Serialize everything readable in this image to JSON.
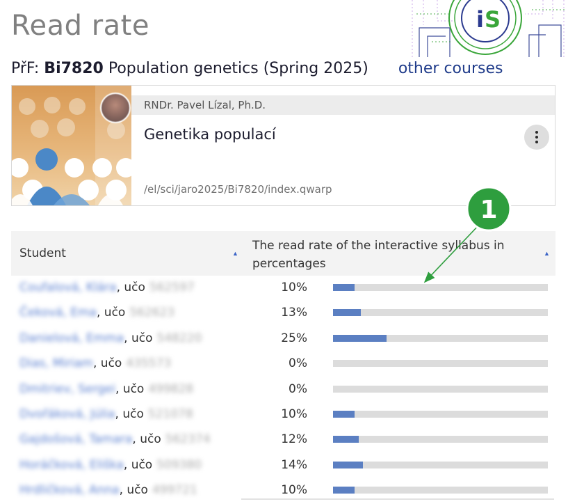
{
  "page": {
    "title": "Read rate"
  },
  "logo": {
    "text": "iS",
    "accent": "#3aa63a",
    "brand": "#2b3a8f"
  },
  "course": {
    "faculty": "PřF:",
    "code": "Bi7820",
    "name": "Population genetics (Spring 2025)",
    "other_courses": "other courses"
  },
  "card": {
    "author": "RNDr. Pavel Lízal, Ph.D.",
    "title": "Genetika populací",
    "path": "/el/sci/jaro2025/Bi7820/index.qwarp",
    "menu_icon": "kebab-icon"
  },
  "table": {
    "col_student": "Student",
    "col_rate": "The read rate of the interactive syllabus in percentages",
    "bar_color": "#5b7fc2",
    "rows": [
      {
        "name": "Coufalová, Klára",
        "uco_label": "učo",
        "uco": "562597",
        "pct_text": "10%",
        "value": 10
      },
      {
        "name": "Čeková, Ema",
        "uco_label": "učo",
        "uco": "562623",
        "pct_text": "13%",
        "value": 13
      },
      {
        "name": "Danielová, Emma",
        "uco_label": "učo",
        "uco": "548220",
        "pct_text": "25%",
        "value": 25
      },
      {
        "name": "Dias, Miriam",
        "uco_label": "učo",
        "uco": "435573",
        "pct_text": "0%",
        "value": 0
      },
      {
        "name": "Dmitriev, Sergei",
        "uco_label": "učo",
        "uco": "499828",
        "pct_text": "0%",
        "value": 0
      },
      {
        "name": "Dvořáková, Júlia",
        "uco_label": "učo",
        "uco": "521078",
        "pct_text": "10%",
        "value": 10
      },
      {
        "name": "Gajdošová, Tamara",
        "uco_label": "učo",
        "uco": "562374",
        "pct_text": "12%",
        "value": 12
      },
      {
        "name": "Horáčková, Eliška",
        "uco_label": "učo",
        "uco": "509380",
        "pct_text": "14%",
        "value": 14
      },
      {
        "name": "Hrdličková, Anna",
        "uco_label": "učo",
        "uco": "499721",
        "pct_text": "10%",
        "value": 10
      }
    ]
  },
  "callout": {
    "number": "1",
    "color": "#2e9e3e"
  }
}
